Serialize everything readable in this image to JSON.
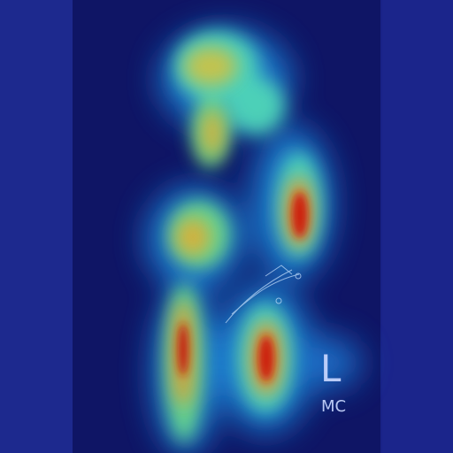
{
  "overlay": {
    "side_marker": "L",
    "initials": "MC"
  },
  "colormap": {
    "low": "#101b6b",
    "mid": "#2ec4d6",
    "high": "#d40000"
  }
}
